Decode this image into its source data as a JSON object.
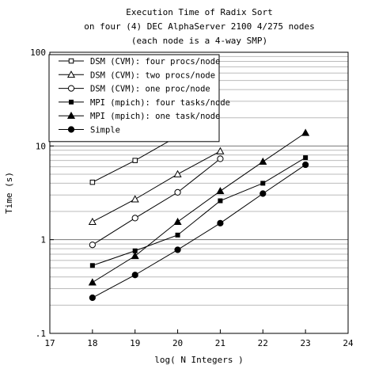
{
  "chart_data": {
    "type": "line",
    "title_lines": [
      "Execution Time of Radix Sort",
      "on four (4) DEC AlphaServer 2100 4/275 nodes",
      "(each node is a 4-way SMP)"
    ],
    "xlabel": "log( N Integers )",
    "ylabel": "Time (s)",
    "xlim": [
      17,
      24
    ],
    "ylim": [
      0.1,
      100
    ],
    "y_scale": "log",
    "x_ticks": [
      "17",
      "18",
      "19",
      "20",
      "21",
      "22",
      "23",
      "24"
    ],
    "y_ticks": [
      {
        "value": 0.1,
        "label": ".1"
      },
      {
        "value": 1,
        "label": "1"
      },
      {
        "value": 10,
        "label": "10"
      },
      {
        "value": 100,
        "label": "100"
      }
    ],
    "grid": "horizontal minor and major",
    "legend_position": "top-left",
    "series": [
      {
        "name": "DSM (CVM): four procs/node",
        "marker": "open-square",
        "x": [
          18,
          19,
          20
        ],
        "y": [
          4.1,
          7.0,
          12.7
        ]
      },
      {
        "name": "DSM (CVM): two procs/node",
        "marker": "open-triangle",
        "x": [
          18,
          19,
          20,
          21
        ],
        "y": [
          1.55,
          2.7,
          5.0,
          8.8
        ]
      },
      {
        "name": "DSM (CVM): one proc/node",
        "marker": "open-circle",
        "x": [
          18,
          19,
          20,
          21
        ],
        "y": [
          0.88,
          1.7,
          3.2,
          7.3
        ]
      },
      {
        "name": "MPI (mpich): four tasks/node",
        "marker": "filled-square",
        "x": [
          18,
          19,
          20,
          21,
          22,
          23
        ],
        "y": [
          0.53,
          0.76,
          1.12,
          2.6,
          4.0,
          7.5
        ]
      },
      {
        "name": "MPI (mpich): one task/node",
        "marker": "filled-triangle",
        "x": [
          18,
          19,
          20,
          21,
          22,
          23
        ],
        "y": [
          0.35,
          0.67,
          1.55,
          3.3,
          6.8,
          13.8
        ]
      },
      {
        "name": "Simple",
        "marker": "filled-circle",
        "x": [
          18,
          19,
          20,
          21,
          22,
          23
        ],
        "y": [
          0.24,
          0.42,
          0.78,
          1.5,
          3.1,
          6.3
        ]
      }
    ]
  }
}
